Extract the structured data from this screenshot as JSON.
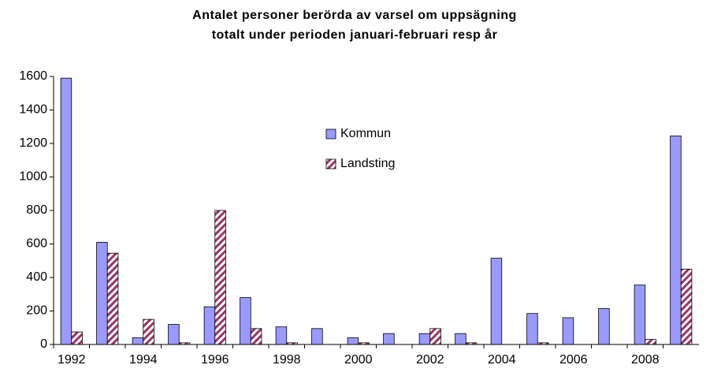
{
  "chart_data": {
    "type": "bar",
    "title": [
      "Antalet personer berörda av varsel om uppsägning",
      "totalt under perioden januari-februari resp år"
    ],
    "categories": [
      "1992",
      null,
      "1994",
      null,
      "1996",
      null,
      "1998",
      null,
      "2000",
      null,
      "2002",
      null,
      "2004",
      null,
      "2006",
      null,
      "2008",
      null
    ],
    "series": [
      {
        "name": "Kommun",
        "color": "#9999ff",
        "hatched": false,
        "values": [
          1590,
          610,
          40,
          120,
          225,
          280,
          105,
          95,
          40,
          65,
          65,
          65,
          515,
          185,
          160,
          215,
          355,
          1245
        ]
      },
      {
        "name": "Landsting",
        "color": "#993366",
        "hatched": true,
        "values": [
          75,
          545,
          150,
          10,
          800,
          95,
          10,
          0,
          10,
          0,
          95,
          10,
          0,
          10,
          0,
          0,
          30,
          450
        ]
      }
    ],
    "ylim": [
      0,
      1600
    ],
    "yticks": [
      0,
      200,
      400,
      600,
      800,
      1000,
      1200,
      1400,
      1600
    ],
    "grid": false
  }
}
